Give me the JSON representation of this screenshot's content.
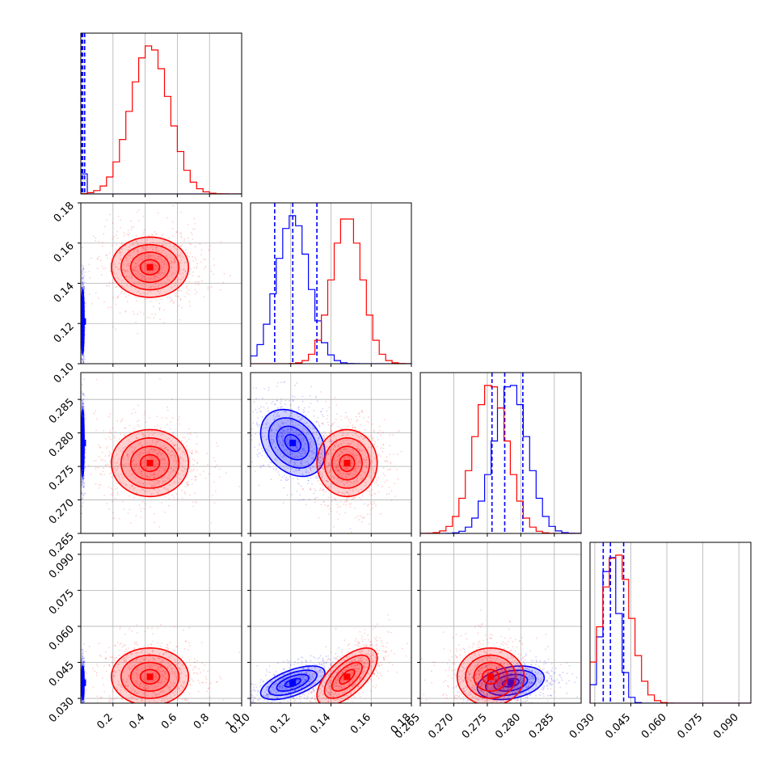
{
  "chart_data": {
    "type": "corner",
    "title": "",
    "grid": true,
    "parameters": [
      {
        "range": [
          0.0,
          1.0
        ],
        "ticks": [
          0.2,
          0.4,
          0.6,
          0.8,
          1.0
        ],
        "tick_labels": [
          "0.2",
          "0.4",
          "0.6",
          "0.8",
          "1.0"
        ]
      },
      {
        "range": [
          0.1,
          0.18
        ],
        "ticks": [
          0.1,
          0.12,
          0.14,
          0.16,
          0.18
        ],
        "tick_labels": [
          "0.10",
          "0.12",
          "0.14",
          "0.16",
          "0.18"
        ]
      },
      {
        "range": [
          0.265,
          0.289
        ],
        "ticks": [
          0.265,
          0.27,
          0.275,
          0.28,
          0.285
        ],
        "tick_labels": [
          "0.265",
          "0.270",
          "0.275",
          "0.280",
          "0.285"
        ]
      },
      {
        "range": [
          0.028,
          0.095
        ],
        "ticks": [
          0.03,
          0.045,
          0.06,
          0.075,
          0.09
        ],
        "tick_labels": [
          "0.030",
          "0.045",
          "0.060",
          "0.075",
          "0.090"
        ]
      }
    ],
    "series": [
      {
        "color": "#0000ff",
        "means": [
          0.012,
          0.121,
          0.2785,
          0.0365
        ],
        "sigmas": [
          0.004,
          0.008,
          0.0025,
          0.0035
        ],
        "correlations": [
          [
            1,
            0.0,
            0.0,
            0.0
          ],
          [
            0.0,
            1,
            -0.3,
            0.6
          ],
          [
            0.0,
            -0.3,
            1,
            0.3
          ],
          [
            0.0,
            0.6,
            0.3,
            1
          ]
        ],
        "quantiles": [
          [
            0.006,
            0.012,
            0.024
          ],
          [
            0.112,
            0.121,
            0.133
          ],
          [
            0.2757,
            0.2776,
            0.2803
          ],
          [
            0.0335,
            0.0365,
            0.042
          ]
        ]
      },
      {
        "color": "#ff0000",
        "means": [
          0.43,
          0.148,
          0.2755,
          0.039
        ],
        "sigmas": [
          0.12,
          0.0075,
          0.0025,
          0.006
        ],
        "correlations": [
          [
            1,
            0.0,
            0.0,
            0.0
          ],
          [
            0.0,
            1,
            0.0,
            0.65
          ],
          [
            0.0,
            0.0,
            1,
            0.0
          ],
          [
            0.0,
            0.65,
            0.0,
            1
          ]
        ],
        "quantiles": []
      }
    ]
  }
}
